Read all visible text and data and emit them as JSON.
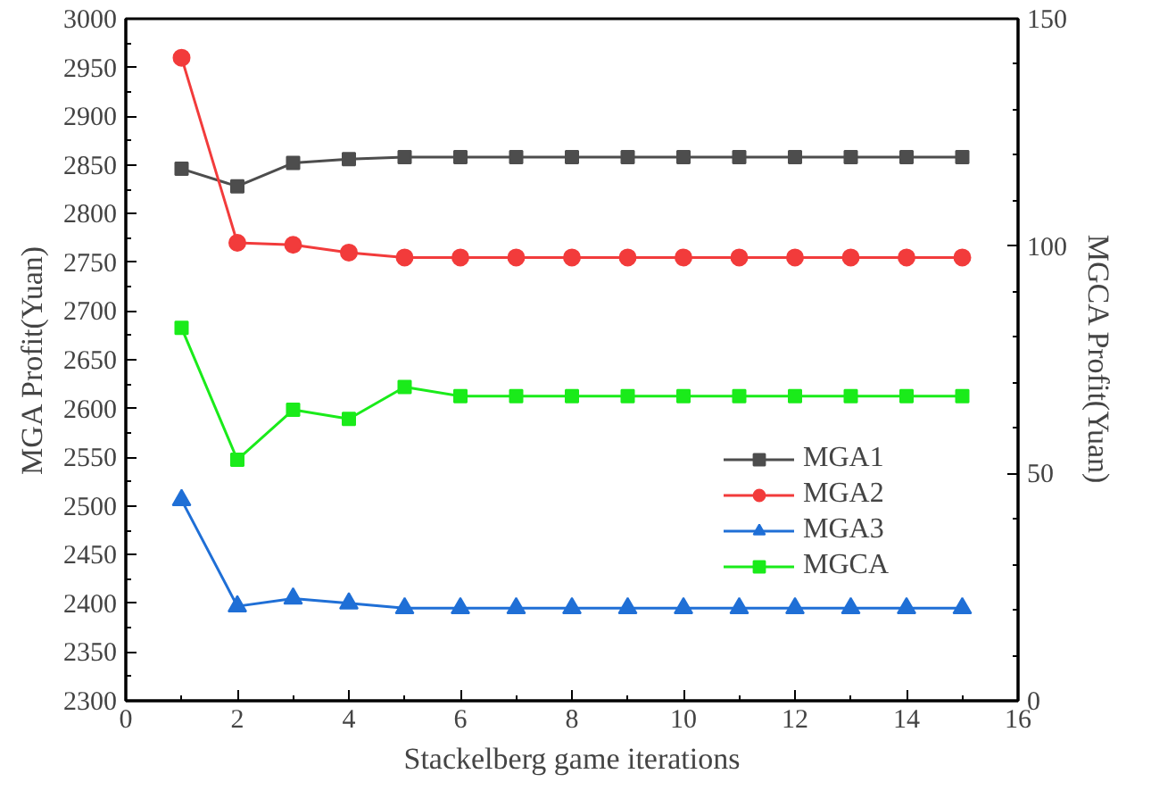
{
  "chart_data": {
    "type": "line",
    "xlabel": "Stackelberg game iterations",
    "ylabel": "MGA Profit(Yuan)",
    "y2label": "MGCA Profit(Yuan)",
    "x": [
      1,
      2,
      3,
      4,
      5,
      6,
      7,
      8,
      9,
      10,
      11,
      12,
      13,
      14,
      15
    ],
    "series": [
      {
        "name": "MGA1",
        "color": "#4d4d4d",
        "marker": "square",
        "values": [
          2846,
          2828,
          2852,
          2856,
          2858,
          2858,
          2858,
          2858,
          2858,
          2858,
          2858,
          2858,
          2858,
          2858,
          2858
        ]
      },
      {
        "name": "MGA2",
        "color": "#f23b3b",
        "marker": "circle",
        "values": [
          2960,
          2770,
          2768,
          2760,
          2755,
          2755,
          2755,
          2755,
          2755,
          2755,
          2755,
          2755,
          2755,
          2755,
          2755
        ]
      },
      {
        "name": "MGA3",
        "color": "#1f6fd6",
        "marker": "triangle",
        "values": [
          2506,
          2397,
          2405,
          2400,
          2395,
          2395,
          2395,
          2395,
          2395,
          2395,
          2395,
          2395,
          2395,
          2395,
          2395
        ]
      },
      {
        "name": "MGCA",
        "color": "#1aeb1a",
        "marker": "square",
        "axis": "y2",
        "values": [
          82,
          53,
          64,
          62,
          69,
          67,
          67,
          67,
          67,
          67,
          67,
          67,
          67,
          67,
          67
        ]
      }
    ],
    "xlim": [
      0,
      16
    ],
    "xticks": [
      0,
      2,
      4,
      6,
      8,
      10,
      12,
      14,
      16
    ],
    "ylim": [
      2300,
      3000
    ],
    "yticks": [
      2300,
      2350,
      2400,
      2450,
      2500,
      2550,
      2600,
      2650,
      2700,
      2750,
      2800,
      2850,
      2900,
      2950,
      3000
    ],
    "y2lim": [
      0,
      150
    ],
    "y2ticks": [
      0,
      50,
      100,
      150
    ],
    "grid": false,
    "legend": "right",
    "line_style": "solid"
  }
}
